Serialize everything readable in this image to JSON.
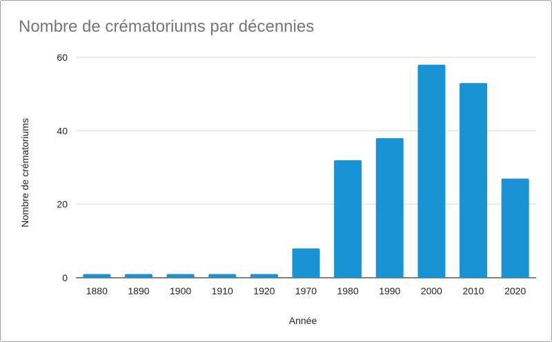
{
  "chart_data": {
    "type": "bar",
    "title": "Nombre de crématoriums par décennies",
    "xlabel": "Année",
    "ylabel": "Nombre de crématoriums",
    "categories": [
      "1880",
      "1890",
      "1900",
      "1910",
      "1920",
      "1970",
      "1980",
      "1990",
      "2000",
      "2010",
      "2020"
    ],
    "values": [
      1,
      1,
      1,
      1,
      1,
      8,
      32,
      38,
      58,
      53,
      27
    ],
    "ylim": [
      0,
      60
    ],
    "yticks": [
      0,
      20,
      40,
      60
    ],
    "grid": true,
    "legend": "none",
    "colors": {
      "bar": "#1a93d6",
      "grid": "#d9d9d9",
      "text": "#222222",
      "title": "#757575"
    }
  }
}
